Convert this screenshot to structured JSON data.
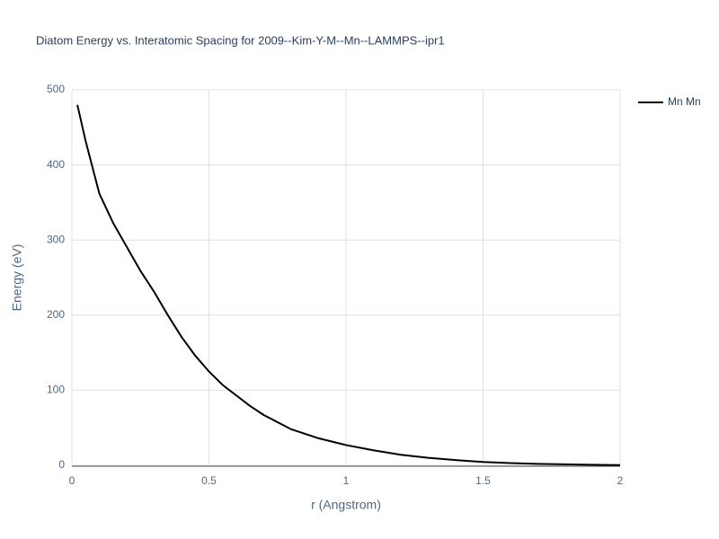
{
  "chart_data": {
    "type": "line",
    "title": "Diatom Energy vs. Interatomic Spacing for 2009--Kim-Y-M--Mn--LAMMPS--ipr1",
    "x_label": "r (Angstrom)",
    "y_label": "Energy (eV)",
    "x": [
      0.02,
      0.05,
      0.1,
      0.15,
      0.2,
      0.25,
      0.3,
      0.35,
      0.4,
      0.45,
      0.5,
      0.55,
      0.6,
      0.65,
      0.7,
      0.8,
      0.9,
      1.0,
      1.1,
      1.2,
      1.3,
      1.4,
      1.5,
      1.6,
      1.7,
      1.8,
      1.9,
      2.0
    ],
    "series": [
      {
        "name": "Mn Mn",
        "color": "#000000",
        "values": [
          480,
          432,
          362,
          323,
          291,
          259,
          231,
          200,
          171,
          146,
          125,
          107,
          93,
          79,
          67,
          48,
          36,
          27,
          20,
          14,
          10,
          7,
          4.5,
          3,
          2,
          1.3,
          0.7,
          0.3
        ]
      }
    ],
    "xlim": [
      0,
      2
    ],
    "ylim": [
      0,
      500
    ],
    "xticks": [
      0,
      0.5,
      1,
      1.5,
      2
    ],
    "yticks": [
      0,
      100,
      200,
      300,
      400,
      500
    ],
    "grid": true,
    "legend": "top-right"
  }
}
